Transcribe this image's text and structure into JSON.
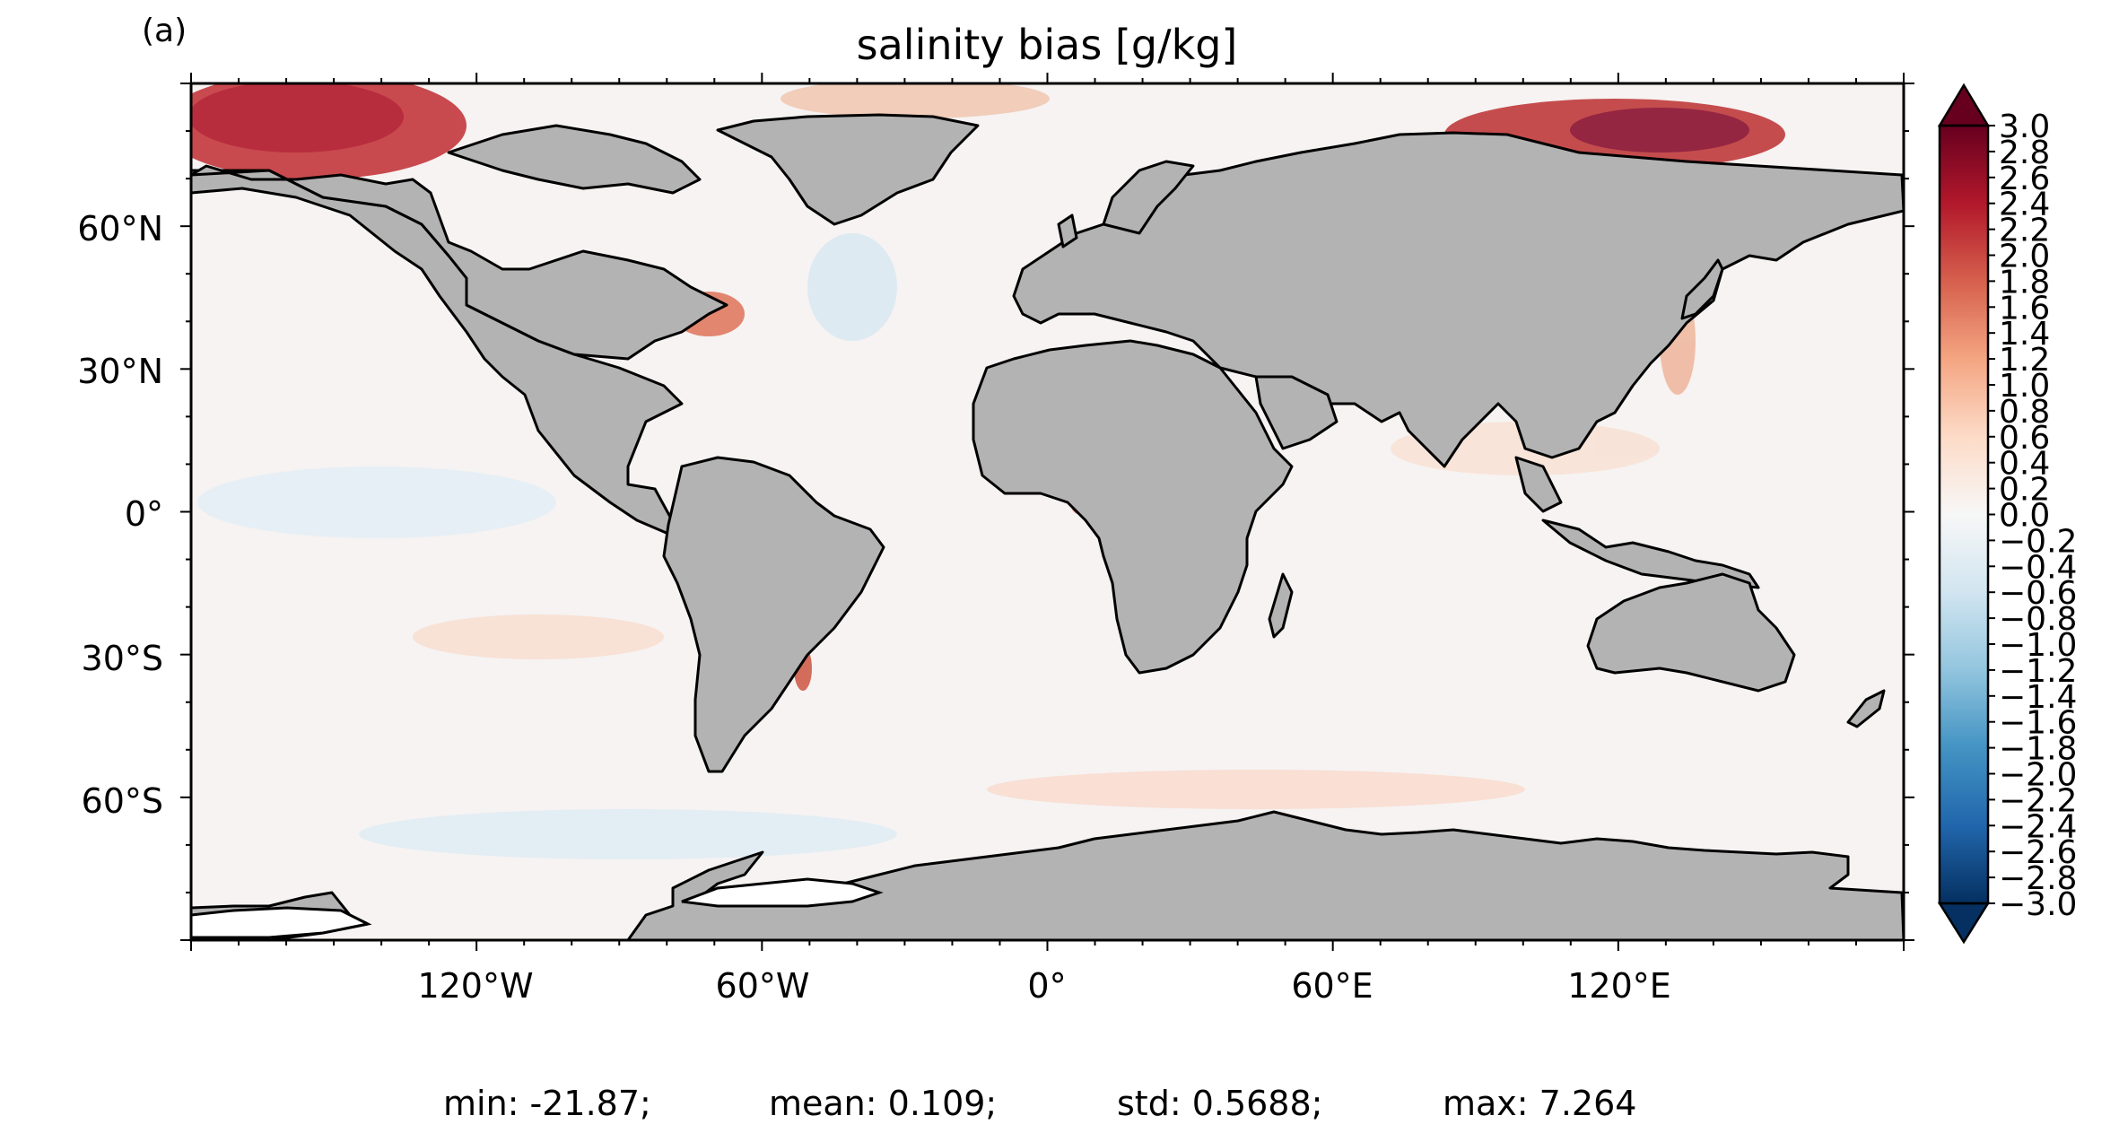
{
  "panel_label": "(a)",
  "title": "salinity bias [g/kg]",
  "lat_ticks": [
    "60°N",
    "30°N",
    "0°",
    "30°S",
    "60°S"
  ],
  "lon_ticks": [
    "120°W",
    "60°W",
    "0°",
    "60°E",
    "120°E"
  ],
  "colorbar": {
    "ticks": [
      "3.0",
      "2.8",
      "2.6",
      "2.4",
      "2.2",
      "2.0",
      "1.8",
      "1.6",
      "1.4",
      "1.2",
      "1.0",
      "0.8",
      "0.6",
      "0.4",
      "0.2",
      "0.0",
      "−0.2",
      "−0.4",
      "−0.6",
      "−0.8",
      "−1.0",
      "−1.2",
      "−1.4",
      "−1.6",
      "−1.8",
      "−2.0",
      "−2.2",
      "−2.4",
      "−2.6",
      "−2.8",
      "−3.0"
    ],
    "min": -3.0,
    "max": 3.0,
    "colormap": "RdBu_r",
    "extend": "both"
  },
  "colors": {
    "land": "#b3b3b3",
    "coast": "#000000",
    "ocean_neutral": "#f7f7f7",
    "high": "#67001f",
    "low": "#053061"
  },
  "stats": {
    "min": "min: -21.87;",
    "mean": "mean: 0.109;",
    "std": "std: 0.5688;",
    "max": "max: 7.264"
  }
}
